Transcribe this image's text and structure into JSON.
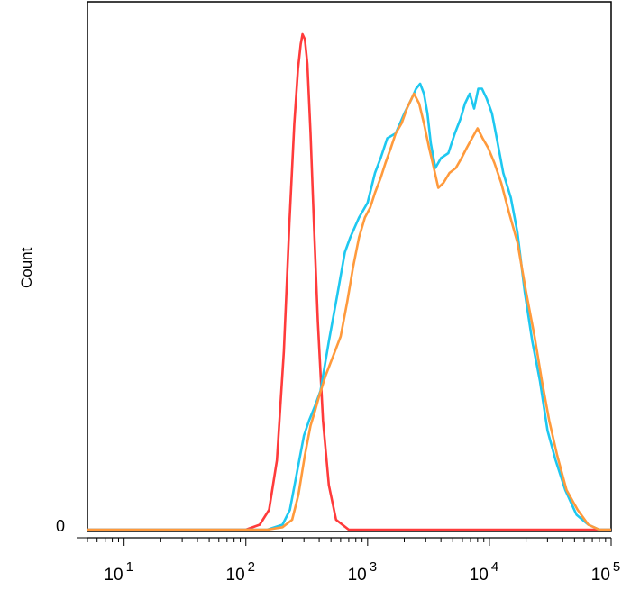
{
  "chart_data": {
    "type": "line",
    "title": "",
    "xlabel": "",
    "ylabel": "Count",
    "x_scale": "log",
    "xlim": [
      5,
      100000
    ],
    "ylim": [
      0,
      1.0
    ],
    "y_tick_labels": [
      "0"
    ],
    "x_tick_labels": [
      {
        "value": 10,
        "base": "10",
        "exp": "1"
      },
      {
        "value": 100,
        "base": "10",
        "exp": "2"
      },
      {
        "value": 1000,
        "base": "10",
        "exp": "3"
      },
      {
        "value": 10000,
        "base": "10",
        "exp": "4"
      },
      {
        "value": 100000,
        "base": "10",
        "exp": "5"
      }
    ],
    "grid": false,
    "legend": "none",
    "series": [
      {
        "color": "#ff3b3b",
        "points": [
          [
            5,
            0.0
          ],
          [
            100,
            0.0
          ],
          [
            130,
            0.01
          ],
          [
            155,
            0.04
          ],
          [
            180,
            0.14
          ],
          [
            205,
            0.36
          ],
          [
            228,
            0.62
          ],
          [
            250,
            0.82
          ],
          [
            268,
            0.93
          ],
          [
            282,
            0.98
          ],
          [
            292,
            1.0
          ],
          [
            305,
            0.99
          ],
          [
            320,
            0.94
          ],
          [
            340,
            0.8
          ],
          [
            362,
            0.62
          ],
          [
            390,
            0.42
          ],
          [
            430,
            0.22
          ],
          [
            480,
            0.09
          ],
          [
            550,
            0.02
          ],
          [
            700,
            0.0
          ],
          [
            100000,
            0.0
          ]
        ]
      },
      {
        "color": "#1ec8f0",
        "points": [
          [
            5,
            0.0
          ],
          [
            150,
            0.0
          ],
          [
            200,
            0.01
          ],
          [
            230,
            0.04
          ],
          [
            265,
            0.12
          ],
          [
            300,
            0.19
          ],
          [
            330,
            0.22
          ],
          [
            370,
            0.25
          ],
          [
            410,
            0.28
          ],
          [
            480,
            0.38
          ],
          [
            560,
            0.47
          ],
          [
            650,
            0.56
          ],
          [
            720,
            0.59
          ],
          [
            850,
            0.63
          ],
          [
            1000,
            0.66
          ],
          [
            1150,
            0.72
          ],
          [
            1280,
            0.75
          ],
          [
            1450,
            0.79
          ],
          [
            1700,
            0.8
          ],
          [
            2000,
            0.84
          ],
          [
            2300,
            0.87
          ],
          [
            2500,
            0.89
          ],
          [
            2700,
            0.9
          ],
          [
            2900,
            0.88
          ],
          [
            3100,
            0.84
          ],
          [
            3300,
            0.78
          ],
          [
            3600,
            0.73
          ],
          [
            4000,
            0.75
          ],
          [
            4600,
            0.76
          ],
          [
            5200,
            0.8
          ],
          [
            5800,
            0.83
          ],
          [
            6300,
            0.86
          ],
          [
            6900,
            0.88
          ],
          [
            7500,
            0.85
          ],
          [
            8100,
            0.89
          ],
          [
            8700,
            0.89
          ],
          [
            9500,
            0.87
          ],
          [
            10500,
            0.84
          ],
          [
            11500,
            0.79
          ],
          [
            13000,
            0.72
          ],
          [
            15000,
            0.67
          ],
          [
            17000,
            0.6
          ],
          [
            19500,
            0.48
          ],
          [
            22500,
            0.38
          ],
          [
            26000,
            0.3
          ],
          [
            30000,
            0.2
          ],
          [
            35000,
            0.14
          ],
          [
            42000,
            0.08
          ],
          [
            52000,
            0.03
          ],
          [
            65000,
            0.01
          ],
          [
            80000,
            0.0
          ],
          [
            100000,
            0.0
          ]
        ]
      },
      {
        "color": "#ff9a3c",
        "points": [
          [
            5,
            0.0
          ],
          [
            150,
            0.0
          ],
          [
            200,
            0.005
          ],
          [
            240,
            0.02
          ],
          [
            270,
            0.07
          ],
          [
            305,
            0.15
          ],
          [
            340,
            0.21
          ],
          [
            370,
            0.24
          ],
          [
            400,
            0.27
          ],
          [
            450,
            0.31
          ],
          [
            520,
            0.35
          ],
          [
            600,
            0.39
          ],
          [
            680,
            0.46
          ],
          [
            760,
            0.53
          ],
          [
            850,
            0.59
          ],
          [
            950,
            0.63
          ],
          [
            1050,
            0.65
          ],
          [
            1150,
            0.68
          ],
          [
            1280,
            0.71
          ],
          [
            1400,
            0.74
          ],
          [
            1550,
            0.77
          ],
          [
            1700,
            0.8
          ],
          [
            1900,
            0.82
          ],
          [
            2100,
            0.85
          ],
          [
            2400,
            0.88
          ],
          [
            2650,
            0.86
          ],
          [
            2900,
            0.82
          ],
          [
            3200,
            0.77
          ],
          [
            3500,
            0.73
          ],
          [
            3800,
            0.69
          ],
          [
            4200,
            0.7
          ],
          [
            4700,
            0.72
          ],
          [
            5300,
            0.73
          ],
          [
            5900,
            0.75
          ],
          [
            6500,
            0.77
          ],
          [
            7200,
            0.79
          ],
          [
            8000,
            0.81
          ],
          [
            8800,
            0.79
          ],
          [
            9800,
            0.77
          ],
          [
            11000,
            0.74
          ],
          [
            12500,
            0.7
          ],
          [
            14500,
            0.64
          ],
          [
            17000,
            0.58
          ],
          [
            20000,
            0.48
          ],
          [
            23500,
            0.39
          ],
          [
            27000,
            0.3
          ],
          [
            31000,
            0.22
          ],
          [
            36000,
            0.15
          ],
          [
            43000,
            0.08
          ],
          [
            53000,
            0.04
          ],
          [
            65000,
            0.01
          ],
          [
            80000,
            0.0
          ],
          [
            100000,
            0.0
          ]
        ]
      }
    ]
  }
}
